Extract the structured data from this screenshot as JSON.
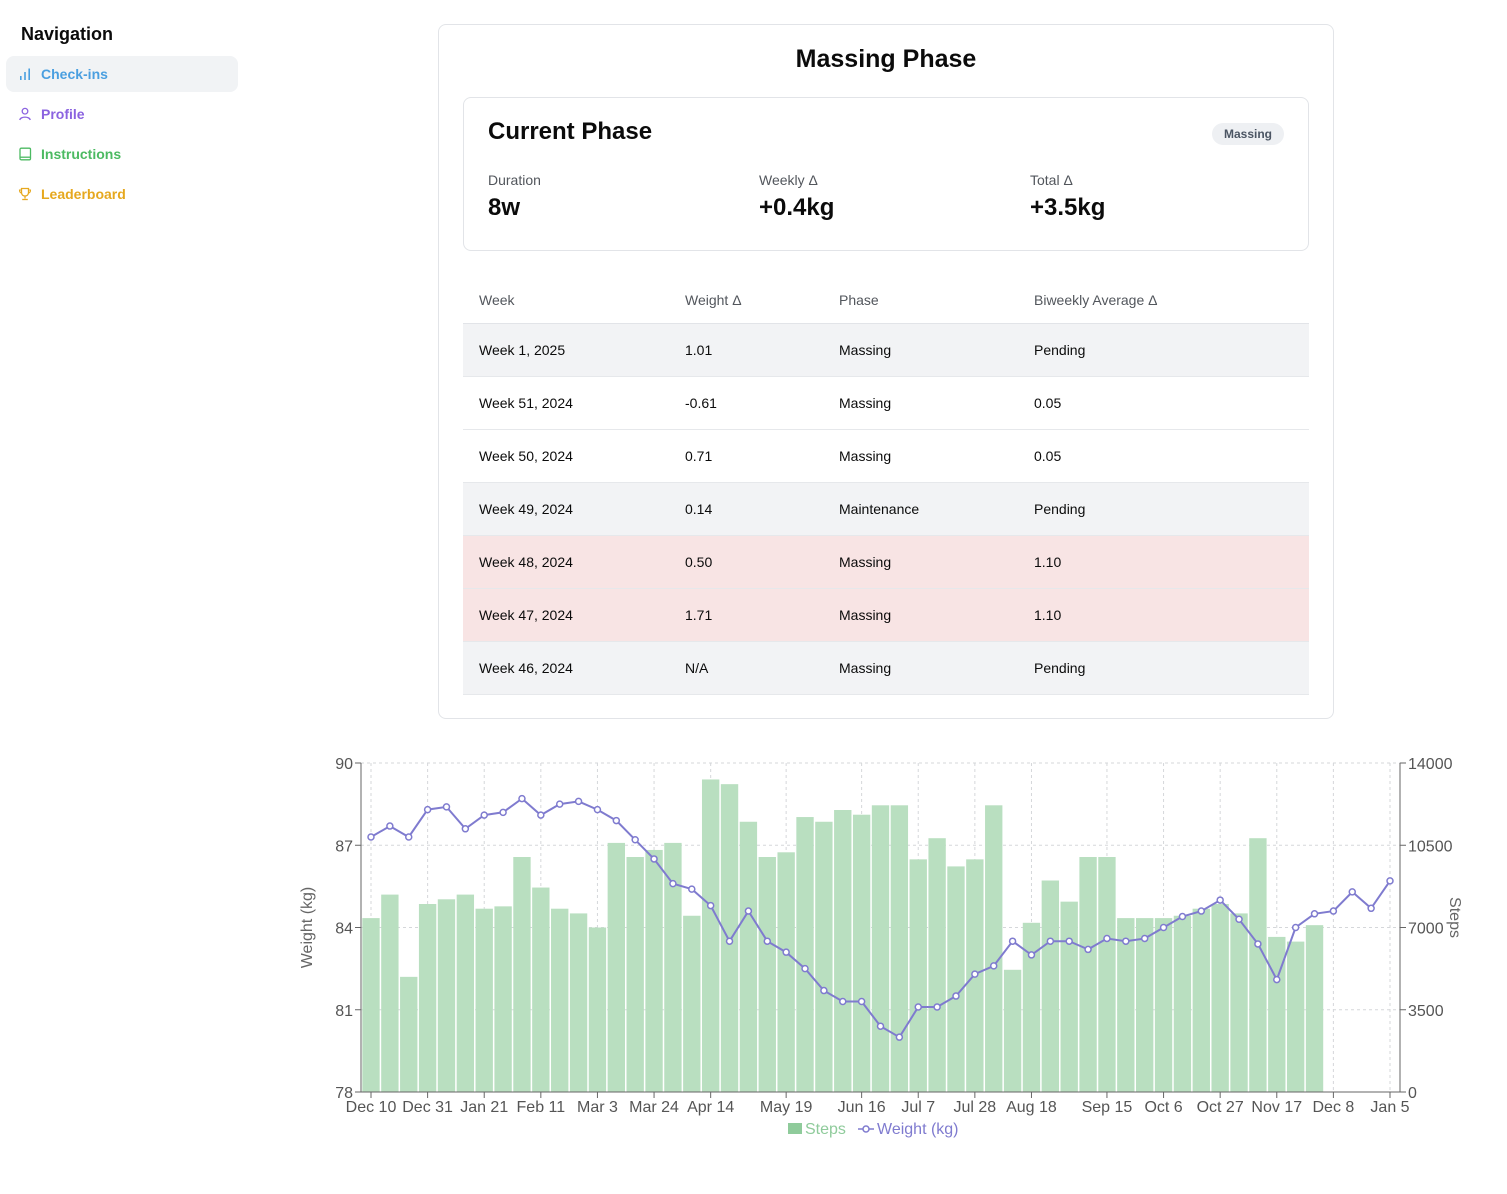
{
  "sidebar": {
    "title": "Navigation",
    "items": [
      {
        "label": "Check-ins",
        "icon": "bar-chart-icon",
        "color": "#4a9fe0"
      },
      {
        "label": "Profile",
        "icon": "user-icon",
        "color": "#8b63e0"
      },
      {
        "label": "Instructions",
        "icon": "book-icon",
        "color": "#4cba62"
      },
      {
        "label": "Leaderboard",
        "icon": "trophy-icon",
        "color": "#e6a81e"
      }
    ]
  },
  "card": {
    "title": "Massing Phase",
    "current": {
      "title": "Current Phase",
      "badge": "Massing",
      "duration_label": "Duration",
      "duration_value": "8w",
      "weekly_label": "Weekly Δ",
      "weekly_value": "+0.4kg",
      "total_label": "Total Δ",
      "total_value": "+3.5kg"
    },
    "table": {
      "headers": [
        "Week",
        "Weight Δ",
        "Phase",
        "Biweekly Average Δ"
      ],
      "rows": [
        {
          "week": "Week 1, 2025",
          "delta": "1.01",
          "phase": "Massing",
          "avg": "Pending",
          "style": "grey"
        },
        {
          "week": "Week 51, 2024",
          "delta": "-0.61",
          "phase": "Massing",
          "avg": "0.05",
          "style": "white"
        },
        {
          "week": "Week 50, 2024",
          "delta": "0.71",
          "phase": "Massing",
          "avg": "0.05",
          "style": "white"
        },
        {
          "week": "Week 49, 2024",
          "delta": "0.14",
          "phase": "Maintenance",
          "avg": "Pending",
          "style": "grey"
        },
        {
          "week": "Week 48, 2024",
          "delta": "0.50",
          "phase": "Massing",
          "avg": "1.10",
          "style": "red"
        },
        {
          "week": "Week 47, 2024",
          "delta": "1.71",
          "phase": "Massing",
          "avg": "1.10",
          "style": "red"
        },
        {
          "week": "Week 46, 2024",
          "delta": "N/A",
          "phase": "Massing",
          "avg": "Pending",
          "style": "grey"
        }
      ]
    }
  },
  "chart_data": {
    "type": "bar",
    "ylabel": "Weight (kg)",
    "y2label": "Steps",
    "ylim": [
      78,
      90
    ],
    "y2lim": [
      0,
      14000
    ],
    "yticks": [
      78,
      81,
      84,
      87,
      90
    ],
    "y2ticks": [
      0,
      3500,
      7000,
      10500,
      14000
    ],
    "xticks": [
      {
        "label": "Dec 10",
        "i": 0
      },
      {
        "label": "Dec 31",
        "i": 3
      },
      {
        "label": "Jan 21",
        "i": 6
      },
      {
        "label": "Feb 11",
        "i": 9
      },
      {
        "label": "Mar 3",
        "i": 12
      },
      {
        "label": "Mar 24",
        "i": 15
      },
      {
        "label": "Apr 14",
        "i": 18
      },
      {
        "label": "May 19",
        "i": 22
      },
      {
        "label": "Jun 16",
        "i": 26
      },
      {
        "label": "Jul 7",
        "i": 29
      },
      {
        "label": "Jul 28",
        "i": 32
      },
      {
        "label": "Aug 18",
        "i": 35
      },
      {
        "label": "Sep 15",
        "i": 39
      },
      {
        "label": "Oct 6",
        "i": 42
      },
      {
        "label": "Oct 27",
        "i": 45
      },
      {
        "label": "Nov 17",
        "i": 48
      },
      {
        "label": "Dec 8",
        "i": 51
      },
      {
        "label": "Jan 5",
        "i": 54
      }
    ],
    "grid": true,
    "legend_position": "bottom",
    "series": [
      {
        "name": "Steps",
        "type": "bar",
        "axis": "right",
        "color": "#b9dfc0",
        "legend_color": "#8fcb9b",
        "values": [
          7400,
          8400,
          4900,
          8000,
          8200,
          8400,
          7800,
          7900,
          10000,
          8700,
          7800,
          7600,
          7000,
          10600,
          10000,
          10300,
          10600,
          7500,
          13300,
          13100,
          11500,
          10000,
          10200,
          11700,
          11500,
          12000,
          11800,
          12200,
          12200,
          9900,
          10800,
          9600,
          9900,
          12200,
          5200,
          7200,
          9000,
          8100,
          10000,
          10000,
          7400,
          7400,
          7400,
          7500,
          7800,
          8000,
          7600,
          10800,
          6600,
          6400,
          7100,
          null,
          null,
          null,
          null
        ]
      },
      {
        "name": "Weight (kg)",
        "type": "line",
        "axis": "left",
        "color": "#7f7bcf",
        "values": [
          87.3,
          87.7,
          87.3,
          88.3,
          88.4,
          87.6,
          88.1,
          88.2,
          88.7,
          88.1,
          88.5,
          88.6,
          88.3,
          87.9,
          87.2,
          86.5,
          85.6,
          85.4,
          84.8,
          83.5,
          84.6,
          83.5,
          83.1,
          82.5,
          81.7,
          81.3,
          81.3,
          80.4,
          80.0,
          81.1,
          81.1,
          81.5,
          82.3,
          82.6,
          83.5,
          83.0,
          83.5,
          83.5,
          83.2,
          83.6,
          83.5,
          83.6,
          84.0,
          84.4,
          84.6,
          85.0,
          84.3,
          83.4,
          82.1,
          84.0,
          84.5,
          84.6,
          85.3,
          84.7,
          85.7
        ]
      }
    ]
  }
}
